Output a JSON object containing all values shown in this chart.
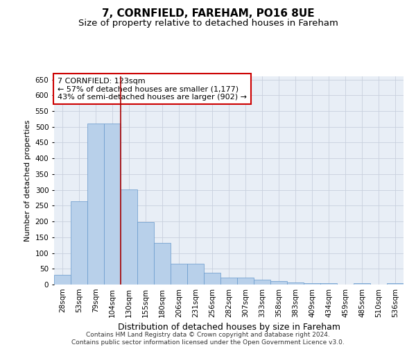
{
  "title": "7, CORNFIELD, FAREHAM, PO16 8UE",
  "subtitle": "Size of property relative to detached houses in Fareham",
  "xlabel": "Distribution of detached houses by size in Fareham",
  "ylabel": "Number of detached properties",
  "categories": [
    "28sqm",
    "53sqm",
    "79sqm",
    "104sqm",
    "130sqm",
    "155sqm",
    "180sqm",
    "206sqm",
    "231sqm",
    "256sqm",
    "282sqm",
    "307sqm",
    "333sqm",
    "358sqm",
    "383sqm",
    "409sqm",
    "434sqm",
    "459sqm",
    "485sqm",
    "510sqm",
    "536sqm"
  ],
  "values": [
    30,
    263,
    511,
    511,
    302,
    197,
    132,
    65,
    65,
    38,
    22,
    22,
    15,
    10,
    7,
    5,
    5,
    0,
    5,
    0,
    5
  ],
  "bar_color": "#b8d0ea",
  "bar_edge_color": "#6699cc",
  "vline_color": "#aa0000",
  "annotation_text": "7 CORNFIELD: 123sqm\n← 57% of detached houses are smaller (1,177)\n43% of semi-detached houses are larger (902) →",
  "annotation_box_color": "#ffffff",
  "annotation_box_edge": "#cc0000",
  "ylim": [
    0,
    660
  ],
  "yticks": [
    0,
    50,
    100,
    150,
    200,
    250,
    300,
    350,
    400,
    450,
    500,
    550,
    600,
    650
  ],
  "grid_color": "#c8d0de",
  "background_color": "#e8eef6",
  "footnote": "Contains HM Land Registry data © Crown copyright and database right 2024.\nContains public sector information licensed under the Open Government Licence v3.0.",
  "title_fontsize": 11,
  "subtitle_fontsize": 9.5,
  "xlabel_fontsize": 9,
  "ylabel_fontsize": 8,
  "tick_fontsize": 7.5,
  "annot_fontsize": 8
}
